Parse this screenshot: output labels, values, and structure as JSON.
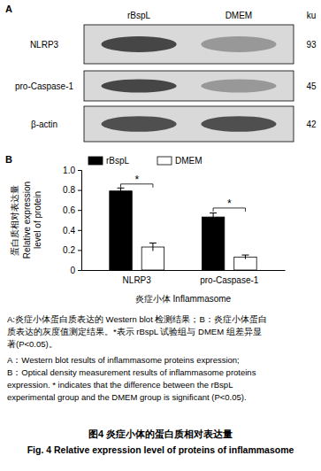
{
  "blot": {
    "label": "A",
    "columns": [
      "rBspL",
      "DMEM"
    ],
    "unit": "ku",
    "rows": [
      {
        "label": "NLRP3",
        "size": 93
      },
      {
        "label": "pro-Caspase-1",
        "size": 45
      },
      {
        "label": "β-actin",
        "size": 42
      }
    ]
  },
  "chart_data": {
    "type": "bar",
    "label": "B",
    "y_label": [
      "蛋白质相对表达量",
      "Relative expression",
      "level of protein"
    ],
    "x_label": "炎症小体 Inflammasome",
    "categories": [
      "NLRP3",
      "pro-Caspase-1"
    ],
    "series": [
      {
        "name": "rBspL",
        "color": "#000000",
        "values": [
          0.79,
          0.53
        ],
        "errors": [
          0.03,
          0.04
        ]
      },
      {
        "name": "DMEM",
        "color": "#ffffff",
        "values": [
          0.23,
          0.13
        ],
        "errors": [
          0.04,
          0.02
        ]
      }
    ],
    "ylim": [
      0,
      1
    ],
    "yticks": [
      0,
      0.2,
      0.4,
      0.6,
      0.8,
      {
        "value": 1,
        "label": "1.0"
      }
    ],
    "legend": "top",
    "annotations": [
      {
        "text": "*",
        "category": "NLRP3",
        "y": 0.86
      },
      {
        "text": "*",
        "category": "pro-Caspase-1",
        "y": 0.62
      }
    ]
  },
  "caption": {
    "lines": [
      "A:炎症小体蛋白质表达的 Western blot 检测结果；B：炎症小体蛋白",
      "质表达的灰度值测定结果。*表示 rBspL 试验组与 DMEM 组差异显",
      "著(P<0.05)。",
      "A：Western blot results of inflammasome proteins expression;",
      "B：Optical density measurement results of inflammasome proteins",
      "expression. * indicates that the difference between the rBspL",
      "experimental group and the DMEM group is significant (P<0.05)."
    ],
    "title_zh": "图4  炎症小体的蛋白质相对表达量",
    "title_en": "Fig. 4  Relative expression level of proteins of inflammasome"
  }
}
